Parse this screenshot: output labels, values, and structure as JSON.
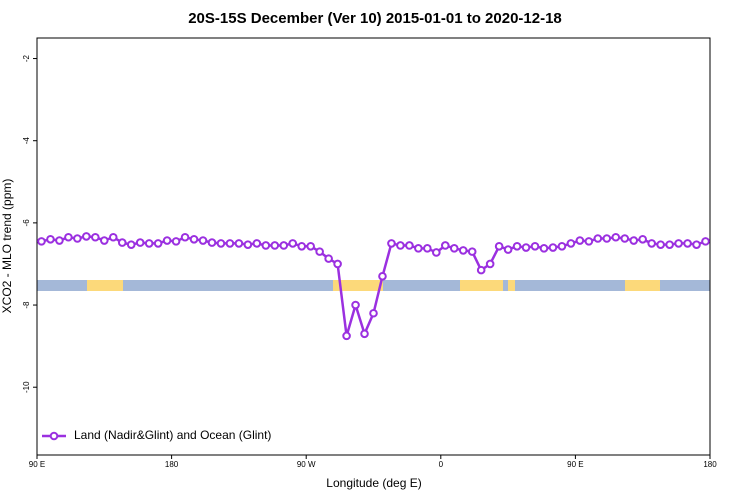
{
  "chart_data": {
    "type": "line",
    "title": "20S-15S December (Ver 10)   2015-01-01 to 2020-12-18",
    "x_label": "Longitude (deg E)",
    "y_label": "XCO2 - MLO trend (ppm)",
    "xlim": [
      90,
      540
    ],
    "xticks": [
      {
        "value": 90,
        "label": "90 E"
      },
      {
        "value": 180,
        "label": "180"
      },
      {
        "value": 270,
        "label": "90 W"
      },
      {
        "value": 360,
        "label": "0"
      },
      {
        "value": 450,
        "label": "90 E"
      },
      {
        "value": 540,
        "label": "180"
      }
    ],
    "ylim": [
      -11.65,
      -1.5
    ],
    "yticks": [
      -2,
      -4,
      -6,
      -8,
      -10
    ],
    "legend": "bottom-left",
    "series": [
      {
        "name": "Land (Nadir&Glint) and Ocean (Glint)",
        "color": "#9b30e0",
        "x": [
          93,
          99,
          105,
          111,
          117,
          123,
          129,
          135,
          141,
          147,
          153,
          159,
          165,
          171,
          177,
          183,
          189,
          195,
          201,
          207,
          213,
          219,
          225,
          231,
          237,
          243,
          249,
          255,
          261,
          267,
          273,
          279,
          285,
          291,
          297,
          303,
          309,
          315,
          321,
          327,
          333,
          339,
          345,
          351,
          357,
          363,
          369,
          375,
          381,
          387,
          393,
          399,
          405,
          411,
          417,
          423,
          429,
          435,
          441,
          447,
          453,
          459,
          465,
          471,
          477,
          483,
          489,
          495,
          501,
          507,
          513,
          519,
          525,
          531,
          537
        ],
        "values": [
          -6.45,
          -6.4,
          -6.43,
          -6.35,
          -6.38,
          -6.33,
          -6.35,
          -6.43,
          -6.35,
          -6.48,
          -6.53,
          -6.48,
          -6.5,
          -6.5,
          -6.43,
          -6.45,
          -6.35,
          -6.4,
          -6.43,
          -6.48,
          -6.5,
          -6.5,
          -6.5,
          -6.53,
          -6.5,
          -6.55,
          -6.55,
          -6.55,
          -6.5,
          -6.57,
          -6.57,
          -6.7,
          -6.87,
          -7.0,
          -8.75,
          -8.0,
          -8.7,
          -8.2,
          -7.3,
          -6.5,
          -6.55,
          -6.55,
          -6.62,
          -6.62,
          -6.72,
          -6.55,
          -6.62,
          -6.67,
          -6.7,
          -7.15,
          -7.0,
          -6.57,
          -6.65,
          -6.57,
          -6.6,
          -6.57,
          -6.62,
          -6.6,
          -6.57,
          -6.5,
          -6.43,
          -6.45,
          -6.38,
          -6.38,
          -6.35,
          -6.38,
          -6.43,
          -6.4,
          -6.5,
          -6.53,
          -6.53,
          -6.5,
          -6.5,
          -6.53,
          -6.45
        ]
      }
    ]
  }
}
